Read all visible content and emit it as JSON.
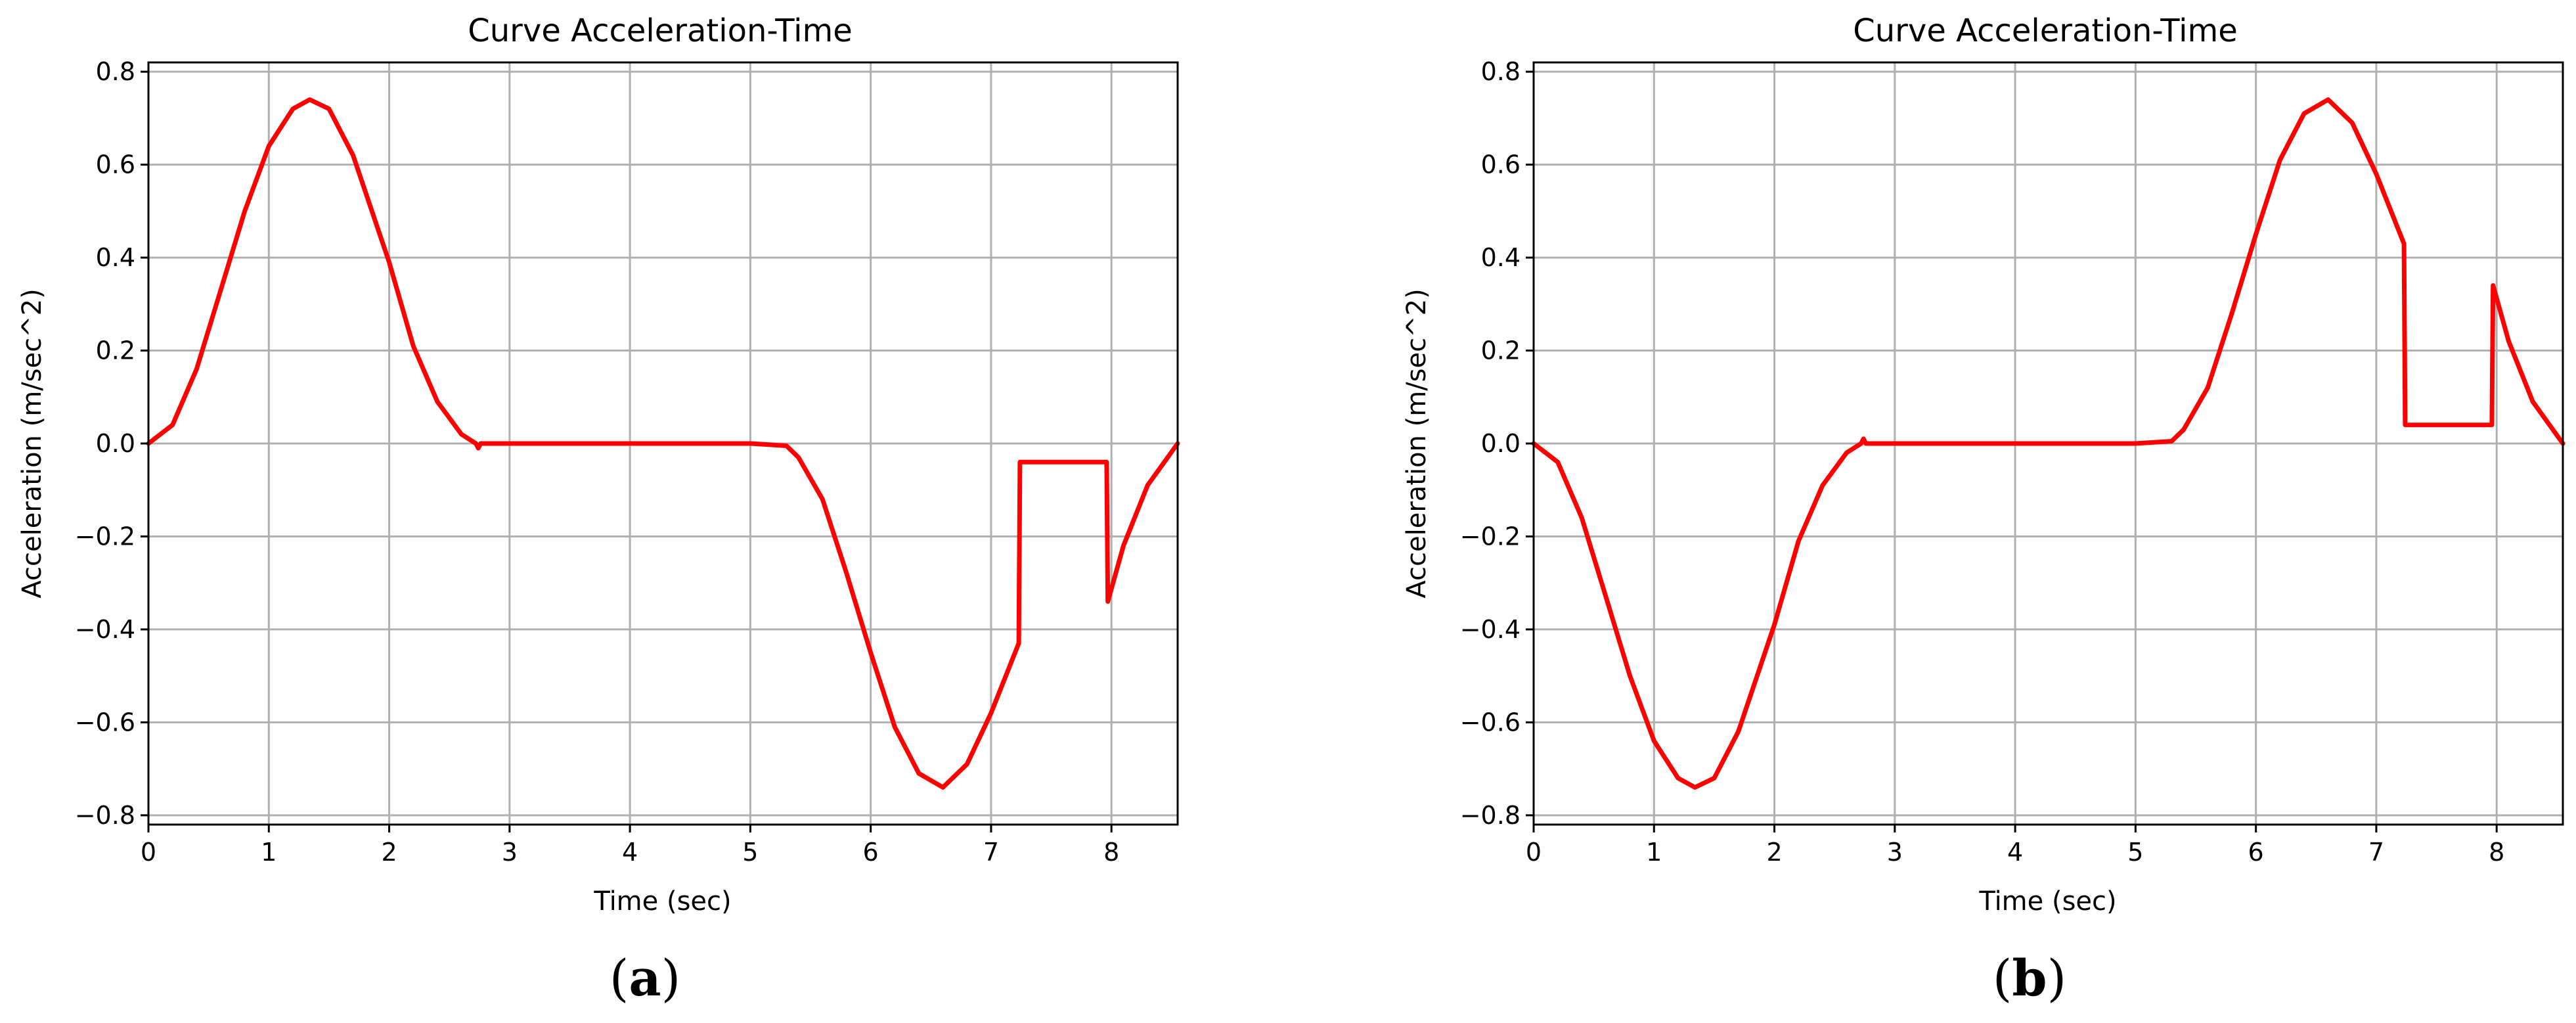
{
  "chart_data": [
    {
      "type": "line",
      "panel_label": "b",
      "title": "Curve Acceleration-Time",
      "xlabel": "Time (sec)",
      "ylabel": "Acceleration (m/sec^2)",
      "xlim": [
        0,
        8.55
      ],
      "ylim": [
        -0.82,
        0.82
      ],
      "xticks": [
        0,
        1,
        2,
        3,
        4,
        5,
        6,
        7,
        8
      ],
      "xtick_labels": [
        "0",
        "1",
        "2",
        "3",
        "4",
        "5",
        "6",
        "7",
        "8"
      ],
      "yticks": [
        -0.8,
        -0.6,
        -0.4,
        -0.2,
        0.0,
        0.2,
        0.4,
        0.6,
        0.8
      ],
      "ytick_labels": [
        "−0.8",
        "−0.6",
        "−0.4",
        "−0.2",
        "0.0",
        "0.2",
        "0.4",
        "0.6",
        "0.8"
      ],
      "grid": true,
      "series": [
        {
          "color": "#ff0000",
          "x": [
            0,
            0.2,
            0.4,
            0.6,
            0.8,
            1.0,
            1.2,
            1.34,
            1.5,
            1.7,
            2.0,
            2.2,
            2.4,
            2.6,
            2.72,
            2.74,
            2.76,
            3.0,
            4.0,
            5.0,
            5.3,
            5.4,
            5.6,
            5.8,
            6.0,
            6.2,
            6.4,
            6.6,
            6.8,
            7.0,
            7.23,
            7.24,
            7.5,
            7.96,
            7.97,
            8.1,
            8.3,
            8.55
          ],
          "y": [
            0,
            0.04,
            0.16,
            0.33,
            0.5,
            0.64,
            0.72,
            0.74,
            0.72,
            0.62,
            0.39,
            0.21,
            0.09,
            0.02,
            0.0,
            -0.01,
            0.0,
            0.0,
            0.0,
            0.0,
            -0.005,
            -0.03,
            -0.12,
            -0.28,
            -0.45,
            -0.61,
            -0.71,
            -0.74,
            -0.69,
            -0.58,
            -0.43,
            -0.04,
            -0.04,
            -0.04,
            -0.34,
            -0.22,
            -0.09,
            0.0
          ]
        }
      ]
    },
    {
      "type": "line",
      "panel_label": "b",
      "title": "Curve Acceleration-Time",
      "xlabel": "Time (sec)",
      "ylabel": "Acceleration (m/sec^2)",
      "xlim": [
        0,
        8.55
      ],
      "ylim": [
        -0.82,
        0.82
      ],
      "xticks": [
        0,
        1,
        2,
        3,
        4,
        5,
        6,
        7,
        8
      ],
      "xtick_labels": [
        "0",
        "1",
        "2",
        "3",
        "4",
        "5",
        "6",
        "7",
        "8"
      ],
      "yticks": [
        -0.8,
        -0.6,
        -0.4,
        -0.2,
        0.0,
        0.2,
        0.4,
        0.6,
        0.8
      ],
      "ytick_labels": [
        "−0.8",
        "−0.6",
        "−0.4",
        "−0.2",
        "0.0",
        "0.2",
        "0.4",
        "0.6",
        "0.8"
      ],
      "grid": true,
      "series": [
        {
          "color": "#ff0000",
          "x": [
            0,
            0.2,
            0.4,
            0.6,
            0.8,
            1.0,
            1.2,
            1.34,
            1.5,
            1.7,
            2.0,
            2.2,
            2.4,
            2.6,
            2.72,
            2.74,
            2.76,
            3.0,
            4.0,
            5.0,
            5.3,
            5.4,
            5.6,
            5.8,
            6.0,
            6.2,
            6.4,
            6.6,
            6.8,
            7.0,
            7.23,
            7.24,
            7.5,
            7.96,
            7.97,
            8.1,
            8.3,
            8.55
          ],
          "y": [
            0,
            -0.04,
            -0.16,
            -0.33,
            -0.5,
            -0.64,
            -0.72,
            -0.74,
            -0.72,
            -0.62,
            -0.39,
            -0.21,
            -0.09,
            -0.02,
            0.0,
            0.01,
            0.0,
            0.0,
            0.0,
            0.0,
            0.005,
            0.03,
            0.12,
            0.28,
            0.45,
            0.61,
            0.71,
            0.74,
            0.69,
            0.58,
            0.43,
            0.04,
            0.04,
            0.04,
            0.34,
            0.22,
            0.09,
            0.0
          ]
        }
      ]
    }
  ],
  "captions": [
    {
      "open": "(",
      "letter": "a",
      "close": ")"
    },
    {
      "open": "(",
      "letter": "b",
      "close": ")"
    }
  ]
}
